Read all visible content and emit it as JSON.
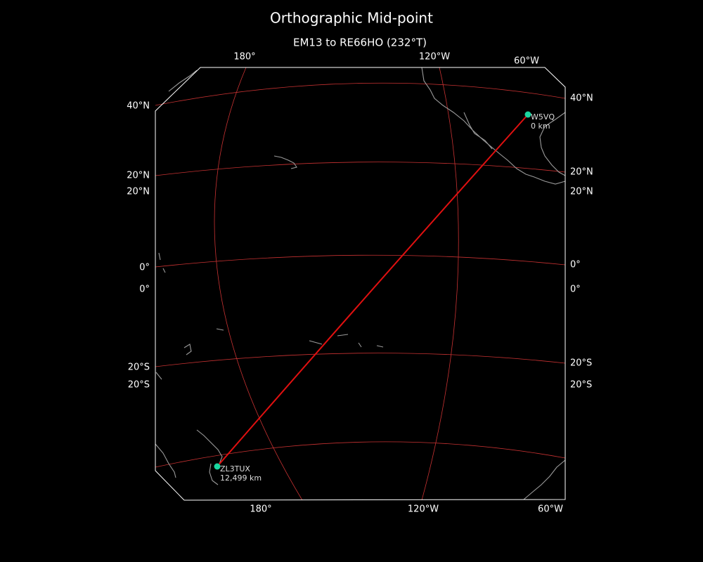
{
  "title": "Orthographic Mid-point",
  "subtitle": "EM13 to RE66HO (232°T)",
  "grid_labels": {
    "top": [
      "180°",
      "120°W",
      "60°W"
    ],
    "bottom": [
      "180°",
      "120°W",
      "60°W"
    ],
    "left": [
      "40°N",
      "20°N",
      "20°N",
      "0°",
      "0°",
      "20°S",
      "20°S"
    ],
    "right": [
      "40°N",
      "20°N",
      "20°N",
      "0°",
      "0°",
      "20°S",
      "20°S"
    ]
  },
  "stations": [
    {
      "call": "W5VQ",
      "distance": "0 km"
    },
    {
      "call": "ZL3TUX",
      "distance": "12,499 km"
    }
  ]
}
